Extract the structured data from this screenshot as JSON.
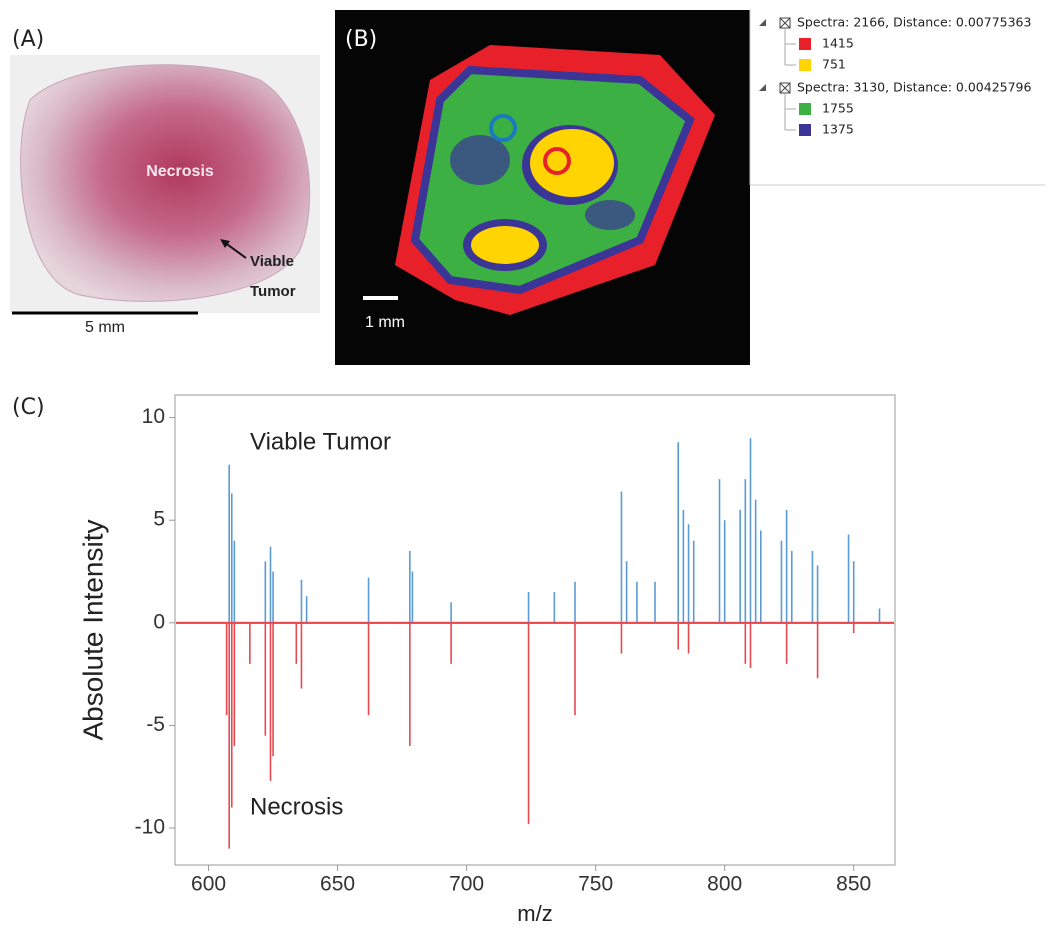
{
  "panels": {
    "a": {
      "label": "(A)",
      "necrosis": "Necrosis",
      "viable": [
        "Viable",
        "Tumor"
      ],
      "scale_bar": "5 mm"
    },
    "b": {
      "label": "(B)",
      "scale_bar": "1 mm",
      "tree": [
        {
          "label": "Spectra: 2166, Distance: 0.00775363",
          "children": [
            {
              "label": "1415",
              "color": "#e8202a"
            },
            {
              "label": "751",
              "color": "#ffd400"
            }
          ]
        },
        {
          "label": "Spectra: 3130, Distance: 0.00425796",
          "children": [
            {
              "label": "1755",
              "color": "#3cb043"
            },
            {
              "label": "1375",
              "color": "#3b3597"
            }
          ]
        }
      ]
    },
    "c": {
      "label": "(C)"
    }
  },
  "chart_data": {
    "type": "stem",
    "xlabel": "m/z",
    "ylabel": "Absolute Intensity",
    "xlim": [
      587,
      866
    ],
    "ylim": [
      -11.8,
      11.1
    ],
    "xticks": [
      600,
      650,
      700,
      750,
      800,
      850
    ],
    "yticks": [
      -10,
      -5,
      0,
      5,
      10
    ],
    "series": [
      {
        "name": "Viable Tumor",
        "color": "#5b9bd5",
        "x": [
          608,
          609,
          610,
          622,
          624,
          625,
          636,
          638,
          662,
          678,
          679,
          694,
          724,
          734,
          742,
          760,
          762,
          766,
          773,
          782,
          784,
          786,
          788,
          798,
          800,
          806,
          808,
          810,
          812,
          814,
          822,
          824,
          826,
          834,
          836,
          848,
          850,
          860
        ],
        "values": [
          7.7,
          6.3,
          4,
          3,
          3.7,
          2.5,
          2.1,
          1.3,
          2.2,
          3.5,
          2.5,
          1,
          1.5,
          1.5,
          2,
          6.4,
          3,
          2,
          2,
          8.8,
          5.5,
          4.8,
          4,
          7,
          5,
          5.5,
          7,
          9,
          6,
          4.5,
          4,
          5.5,
          3.5,
          3.5,
          2.8,
          4.3,
          3,
          0.7
        ]
      },
      {
        "name": "Necrosis",
        "color": "#e8484e",
        "x": [
          607,
          608,
          609,
          610,
          616,
          622,
          624,
          625,
          634,
          636,
          662,
          678,
          694,
          724,
          742,
          760,
          782,
          786,
          808,
          810,
          824,
          836,
          850
        ],
        "values": [
          -4.5,
          -11,
          -9,
          -6,
          -2,
          -5.5,
          -7.7,
          -6.5,
          -2,
          -3.2,
          -4.5,
          -6,
          -2,
          -9.8,
          -4.5,
          -1.5,
          -1.3,
          -1.5,
          -2,
          -2.2,
          -2,
          -2.7,
          -0.5
        ]
      }
    ]
  }
}
